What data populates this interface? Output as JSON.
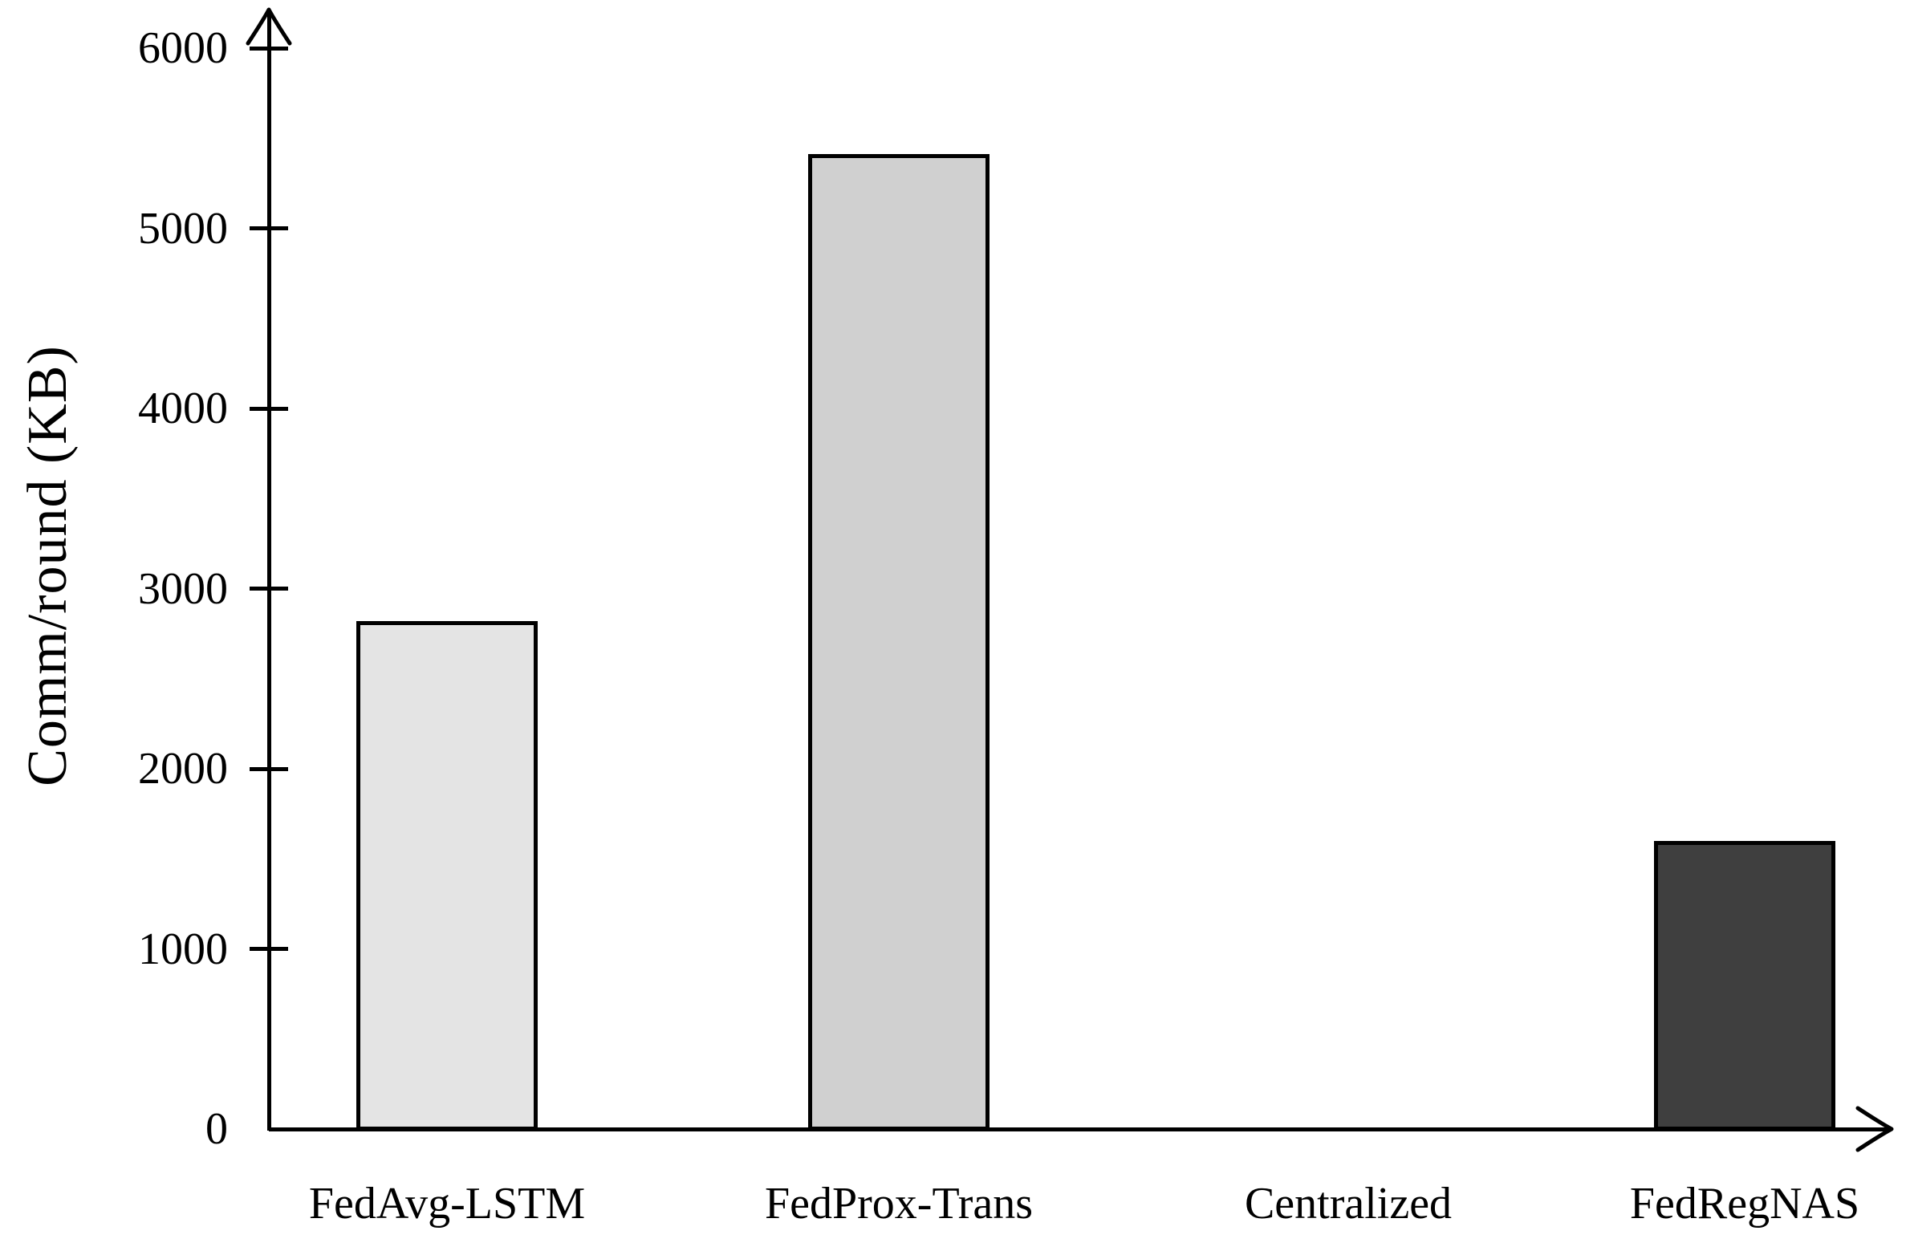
{
  "chart_data": {
    "type": "bar",
    "title": "",
    "ylabel": "Comm/round (KB)",
    "xlabel": "",
    "categories": [
      "FedAvg-LSTM",
      "FedProx-Trans",
      "Centralized",
      "FedRegNAS"
    ],
    "values": [
      2820,
      5410,
      0,
      1600
    ],
    "bar_fill_colors": [
      "#e4e4e4",
      "#d0d0d0",
      "none",
      "#3f3f3f"
    ],
    "bar_border_color": "#000000",
    "axis_color": "#000000",
    "text_color": "#000000",
    "ylim": [
      0,
      6000
    ],
    "yticks": [
      0,
      1000,
      2000,
      3000,
      4000,
      5000,
      6000
    ],
    "grid": false,
    "legend_position": "none",
    "background_color": "#ffffff"
  }
}
